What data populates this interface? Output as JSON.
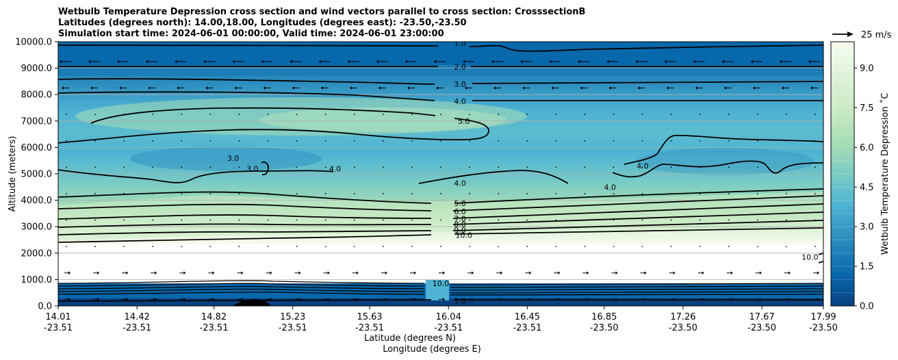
{
  "chart_data": {
    "type": "heatmap",
    "title_lines": [
      "Wetbulb Temperature Depression cross section and wind vectors parallel to cross section: CrosssectionB",
      "Latitudes (degrees north): 14.00,18.00, Longitudes (degrees east): -23.50,-23.50",
      "Simulation start time: 2024-06-01 00:00:00, Valid time: 2024-06-01 23:00:00"
    ],
    "ylabel": "Altitude (meters)",
    "xlabel_lat": "Latitude (degrees N)",
    "xlabel_lon": "Longitude (degrees E)",
    "y_ticks": [
      "0.0",
      "1000.0",
      "2000.0",
      "3000.0",
      "4000.0",
      "5000.0",
      "6000.0",
      "7000.0",
      "8000.0",
      "9000.0",
      "10000.0"
    ],
    "ylim": [
      0,
      10000
    ],
    "x_ticks": [
      {
        "lat": "14.01",
        "lon": "-23.51"
      },
      {
        "lat": "14.42",
        "lon": "-23.51"
      },
      {
        "lat": "14.82",
        "lon": "-23.51"
      },
      {
        "lat": "15.23",
        "lon": "-23.51"
      },
      {
        "lat": "15.63",
        "lon": "-23.51"
      },
      {
        "lat": "16.04",
        "lon": "-23.51"
      },
      {
        "lat": "16.45",
        "lon": "-23.51"
      },
      {
        "lat": "16.85",
        "lon": "-23.50"
      },
      {
        "lat": "17.26",
        "lon": "-23.50"
      },
      {
        "lat": "17.67",
        "lon": "-23.50"
      },
      {
        "lat": "17.99",
        "lon": "-23.50"
      }
    ],
    "xlim": [
      14.01,
      17.99
    ],
    "colorbar": {
      "label": "Wetbulb Temperature Depression $^\\circ$C",
      "label_text": "Wetbulb Temperature Depression ˚C",
      "ticks": [
        "0.0",
        "1.5",
        "3.0",
        "4.5",
        "6.0",
        "7.5",
        "9.0"
      ],
      "range": [
        0,
        10
      ],
      "levels": 20,
      "colors": [
        "#084081",
        "#0868ac",
        "#2b8cbe",
        "#4eb3d3",
        "#7bccc4",
        "#a8ddb5",
        "#ccebc5",
        "#e0f3db",
        "#f7fcf0"
      ]
    },
    "wind_key": "25 m/s",
    "contour_labels": [
      {
        "text": "1.0",
        "lat": 16.1,
        "alt": 9950
      },
      {
        "text": "2.0",
        "lat": 16.1,
        "alt": 9050
      },
      {
        "text": "3.0",
        "lat": 16.1,
        "alt": 8400
      },
      {
        "text": "4.0",
        "lat": 16.1,
        "alt": 7750
      },
      {
        "text": "5.0",
        "lat": 16.12,
        "alt": 7000
      },
      {
        "text": "3.0",
        "lat": 14.92,
        "alt": 5600
      },
      {
        "text": "3.0",
        "lat": 15.02,
        "alt": 5200
      },
      {
        "text": "4.0",
        "lat": 15.45,
        "alt": 5200
      },
      {
        "text": "4.0",
        "lat": 16.1,
        "alt": 4650
      },
      {
        "text": "4.0",
        "lat": 16.88,
        "alt": 4500
      },
      {
        "text": "4.0",
        "lat": 17.05,
        "alt": 5300
      },
      {
        "text": "5.0",
        "lat": 16.1,
        "alt": 3880
      },
      {
        "text": "6.0",
        "lat": 16.1,
        "alt": 3580
      },
      {
        "text": "7.0",
        "lat": 16.1,
        "alt": 3300
      },
      {
        "text": "8.0",
        "lat": 16.1,
        "alt": 3100
      },
      {
        "text": "9.0",
        "lat": 16.1,
        "alt": 2880
      },
      {
        "text": "10.0",
        "lat": 16.12,
        "alt": 2680
      },
      {
        "text": "10.0",
        "lat": 17.92,
        "alt": 1850
      },
      {
        "text": "10.0",
        "lat": 16.0,
        "alt": 850
      },
      {
        "text": "1.0",
        "lat": 16.1,
        "alt": 200
      }
    ]
  }
}
